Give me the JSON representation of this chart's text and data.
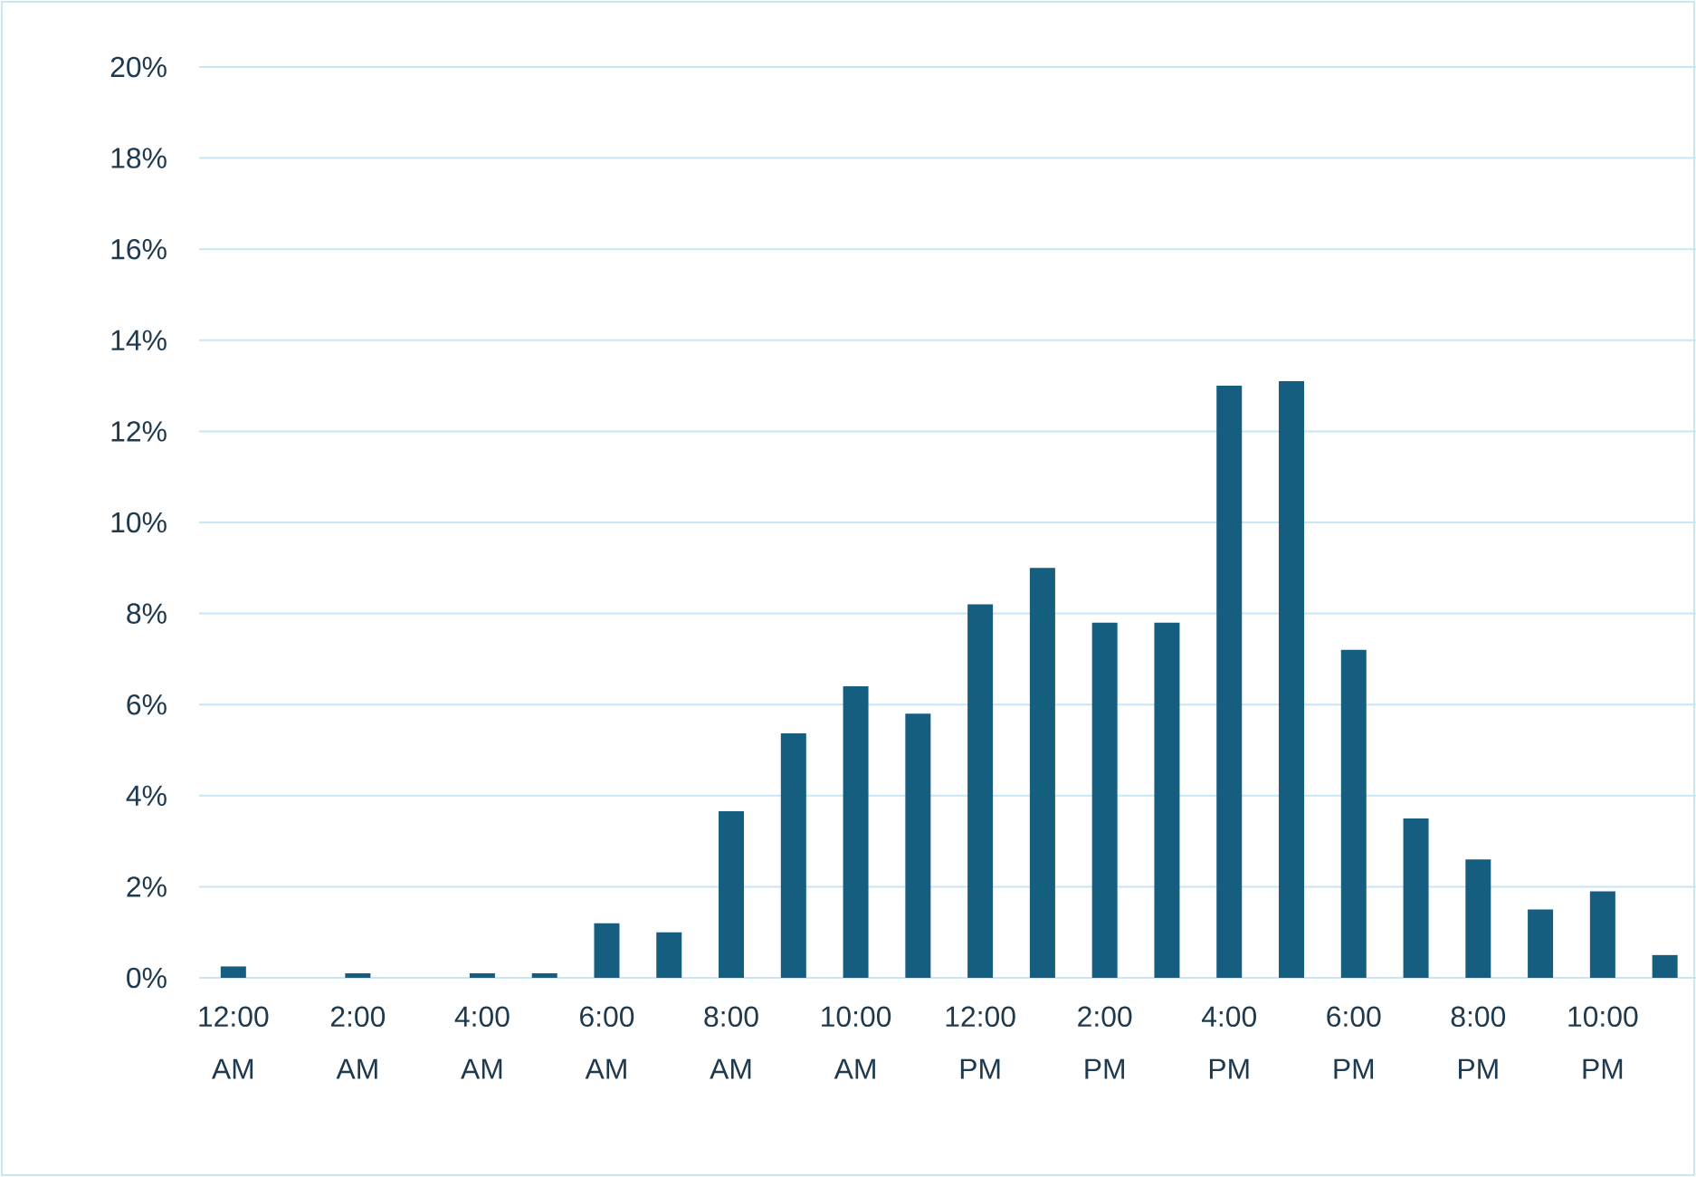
{
  "chart_data": {
    "type": "bar",
    "color": "#155e80",
    "categories": [
      "12:00 AM",
      null,
      "2:00 AM",
      null,
      "4:00 AM",
      null,
      "6:00 AM",
      null,
      "8:00 AM",
      null,
      "10:00 AM",
      null,
      "12:00 PM",
      null,
      "2:00 PM",
      null,
      "4:00 PM",
      null,
      "6:00 PM",
      null,
      "8:00 PM",
      null,
      "10:00 PM",
      null
    ],
    "values": [
      0.25,
      0,
      0.1,
      0,
      0.1,
      0.1,
      1.2,
      1.0,
      3.66,
      5.37,
      6.4,
      5.8,
      8.2,
      9.0,
      7.8,
      7.8,
      13.0,
      13.1,
      7.2,
      3.5,
      2.6,
      1.5,
      1.9,
      0.5
    ],
    "ylim": [
      0,
      20
    ],
    "yticks": [
      {
        "value": 0,
        "label": "0%"
      },
      {
        "value": 2,
        "label": "2%"
      },
      {
        "value": 4,
        "label": "4%"
      },
      {
        "value": 6,
        "label": "6%"
      },
      {
        "value": 8,
        "label": "8%"
      },
      {
        "value": 10,
        "label": "10%"
      },
      {
        "value": 12,
        "label": "12%"
      },
      {
        "value": 14,
        "label": "14%"
      },
      {
        "value": 16,
        "label": "16%"
      },
      {
        "value": 18,
        "label": "18%"
      },
      {
        "value": 20,
        "label": "20%"
      }
    ],
    "grid": "y"
  }
}
